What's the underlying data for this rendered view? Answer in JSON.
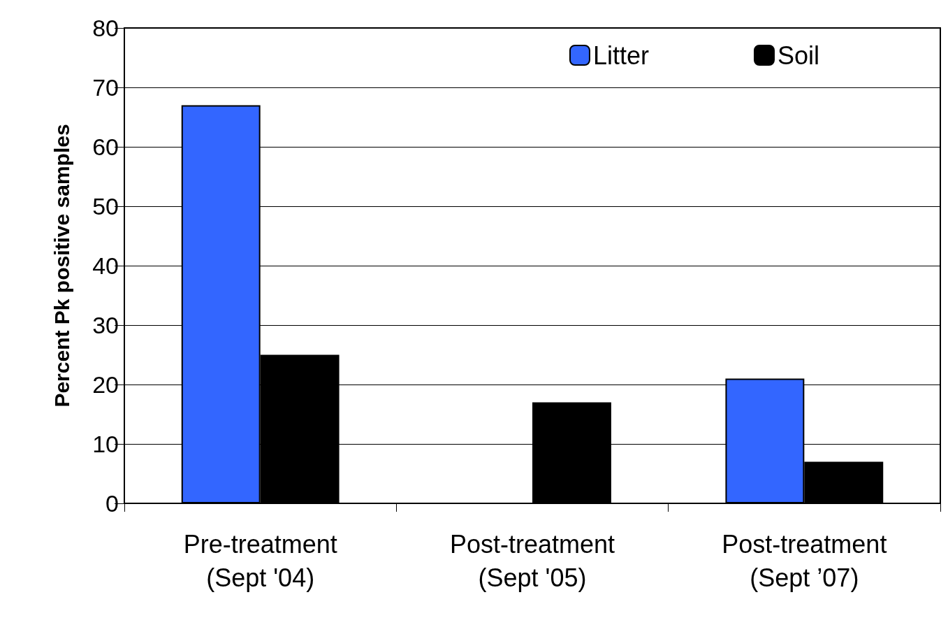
{
  "chart_data": {
    "type": "bar",
    "ylabel": "Percent Pk positive samples",
    "categories": [
      "Pre-treatment\n(Sept '04)",
      "Post-treatment\n(Sept '05)",
      "Post-treatment\n(Sept ’07)"
    ],
    "series": [
      {
        "name": "Litter",
        "color": "#3366ff",
        "values": [
          67,
          0,
          21
        ]
      },
      {
        "name": "Soil",
        "color": "#000000",
        "values": [
          25,
          17,
          7
        ]
      }
    ],
    "ylim": [
      0,
      80
    ],
    "yticks": [
      0,
      10,
      20,
      30,
      40,
      50,
      60,
      70,
      80
    ],
    "grid": "y",
    "legend": "top right"
  }
}
